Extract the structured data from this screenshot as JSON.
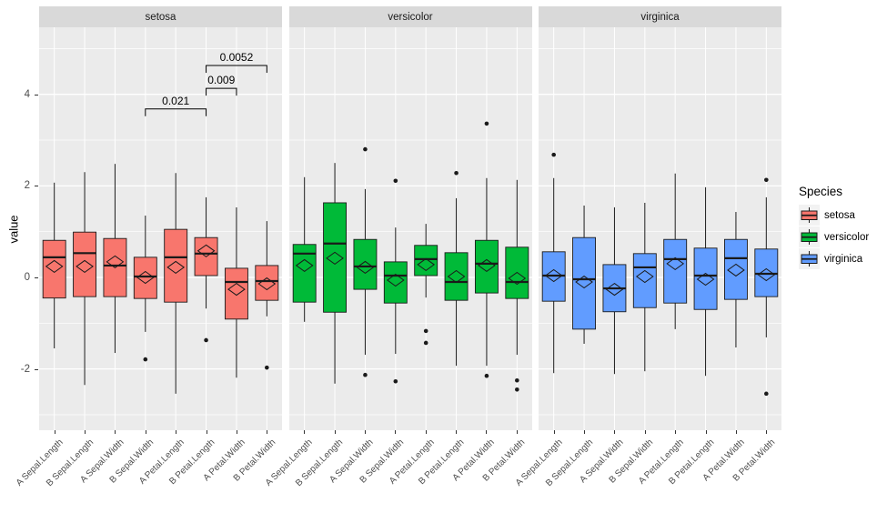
{
  "chart_data": {
    "type": "boxplot",
    "title": "",
    "ylabel": "value",
    "xlabel": "",
    "grid": true,
    "legend_position": "right",
    "y_ticks": [
      4,
      2,
      0,
      -2
    ],
    "y_tick_labels": [
      "4",
      "2",
      "0",
      "-2"
    ],
    "y_minor_gridlines": [
      5,
      3,
      1,
      -1,
      -3
    ],
    "ylim": [
      -3.35,
      5.45
    ],
    "categories": [
      "A Sepal.Length",
      "B Sepal.Length",
      "A Sepal.Width",
      "B Sepal.Width",
      "A Petal.Length",
      "B Petal.Length",
      "A Petal.Width",
      "B Petal.Width"
    ],
    "facets": [
      {
        "name": "setosa",
        "color": "#F8766D",
        "boxes": [
          {
            "whisker_low": -1.55,
            "q1": -0.45,
            "median": 0.44,
            "mean": 0.24,
            "q3": 0.81,
            "whisker_high": 2.07,
            "outliers": []
          },
          {
            "whisker_low": -2.35,
            "q1": -0.42,
            "median": 0.53,
            "mean": 0.24,
            "q3": 0.99,
            "whisker_high": 2.3,
            "outliers": []
          },
          {
            "whisker_low": -1.65,
            "q1": -0.42,
            "median": 0.26,
            "mean": 0.34,
            "q3": 0.85,
            "whisker_high": 2.48,
            "outliers": []
          },
          {
            "whisker_low": -1.19,
            "q1": -0.46,
            "median": 0.02,
            "mean": 0.0,
            "q3": 0.44,
            "whisker_high": 1.35,
            "outliers": [
              -1.79
            ]
          },
          {
            "whisker_low": -2.54,
            "q1": -0.54,
            "median": 0.44,
            "mean": 0.22,
            "q3": 1.05,
            "whisker_high": 2.28,
            "outliers": []
          },
          {
            "whisker_low": -0.68,
            "q1": 0.04,
            "median": 0.52,
            "mean": 0.58,
            "q3": 0.87,
            "whisker_high": 1.75,
            "outliers": [
              -1.37
            ]
          },
          {
            "whisker_low": -2.19,
            "q1": -0.91,
            "median": -0.1,
            "mean": -0.26,
            "q3": 0.2,
            "whisker_high": 1.53,
            "outliers": []
          },
          {
            "whisker_low": -0.85,
            "q1": -0.5,
            "median": -0.08,
            "mean": -0.14,
            "q3": 0.26,
            "whisker_high": 1.23,
            "outliers": [
              -1.97
            ]
          }
        ]
      },
      {
        "name": "versicolor",
        "color": "#00BA38",
        "boxes": [
          {
            "whisker_low": -0.97,
            "q1": -0.54,
            "median": 0.52,
            "mean": 0.26,
            "q3": 0.72,
            "whisker_high": 2.19,
            "outliers": []
          },
          {
            "whisker_low": -2.32,
            "q1": -0.76,
            "median": 0.74,
            "mean": 0.42,
            "q3": 1.63,
            "whisker_high": 2.5,
            "outliers": []
          },
          {
            "whisker_low": -1.69,
            "q1": -0.26,
            "median": 0.24,
            "mean": 0.22,
            "q3": 0.83,
            "whisker_high": 1.93,
            "outliers": [
              2.8,
              -2.13
            ]
          },
          {
            "whisker_low": -1.67,
            "q1": -0.56,
            "median": 0.04,
            "mean": -0.06,
            "q3": 0.34,
            "whisker_high": 1.09,
            "outliers": [
              2.11,
              -2.27
            ]
          },
          {
            "whisker_low": -0.44,
            "q1": 0.04,
            "median": 0.4,
            "mean": 0.28,
            "q3": 0.7,
            "whisker_high": 1.17,
            "outliers": [
              -1.17,
              -1.43
            ]
          },
          {
            "whisker_low": -1.93,
            "q1": -0.5,
            "median": -0.1,
            "mean": 0.02,
            "q3": 0.54,
            "whisker_high": 1.73,
            "outliers": [
              2.28
            ]
          },
          {
            "whisker_low": -1.93,
            "q1": -0.34,
            "median": 0.3,
            "mean": 0.26,
            "q3": 0.81,
            "whisker_high": 2.17,
            "outliers": [
              3.36,
              -2.15
            ]
          },
          {
            "whisker_low": -1.69,
            "q1": -0.46,
            "median": -0.1,
            "mean": -0.02,
            "q3": 0.66,
            "whisker_high": 2.13,
            "outliers": [
              -2.25,
              -2.45
            ]
          }
        ]
      },
      {
        "name": "virginica",
        "color": "#619CFF",
        "boxes": [
          {
            "whisker_low": -2.09,
            "q1": -0.52,
            "median": 0.04,
            "mean": 0.04,
            "q3": 0.56,
            "whisker_high": 2.17,
            "outliers": [
              2.68
            ]
          },
          {
            "whisker_low": -1.45,
            "q1": -1.13,
            "median": -0.04,
            "mean": -0.1,
            "q3": 0.87,
            "whisker_high": 1.57,
            "outliers": []
          },
          {
            "whisker_low": -2.11,
            "q1": -0.75,
            "median": -0.24,
            "mean": -0.26,
            "q3": 0.28,
            "whisker_high": 1.53,
            "outliers": []
          },
          {
            "whisker_low": -2.05,
            "q1": -0.66,
            "median": 0.22,
            "mean": 0.02,
            "q3": 0.52,
            "whisker_high": 1.63,
            "outliers": []
          },
          {
            "whisker_low": -1.13,
            "q1": -0.56,
            "median": 0.4,
            "mean": 0.3,
            "q3": 0.83,
            "whisker_high": 2.27,
            "outliers": []
          },
          {
            "whisker_low": -2.15,
            "q1": -0.7,
            "median": 0.04,
            "mean": -0.04,
            "q3": 0.64,
            "whisker_high": 1.97,
            "outliers": []
          },
          {
            "whisker_low": -1.53,
            "q1": -0.48,
            "median": 0.42,
            "mean": 0.16,
            "q3": 0.83,
            "whisker_high": 1.43,
            "outliers": []
          },
          {
            "whisker_low": -1.31,
            "q1": -0.42,
            "median": 0.08,
            "mean": 0.06,
            "q3": 0.62,
            "whisker_high": 1.75,
            "outliers": [
              2.13,
              -2.54
            ]
          }
        ]
      }
    ],
    "annotations": [
      {
        "facet": "setosa",
        "from_category_index": 3,
        "to_category_index": 5,
        "label": "0.021",
        "y": 3.68
      },
      {
        "facet": "setosa",
        "from_category_index": 5,
        "to_category_index": 6,
        "label": "0.009",
        "y": 4.13
      },
      {
        "facet": "setosa",
        "from_category_index": 5,
        "to_category_index": 7,
        "label": "0.0052",
        "y": 4.63
      }
    ],
    "legend": {
      "title": "Species",
      "entries": [
        {
          "label": "setosa",
          "color": "#F8766D"
        },
        {
          "label": "versicolor",
          "color": "#00BA38"
        },
        {
          "label": "virginica",
          "color": "#619CFF"
        }
      ]
    },
    "colors": {
      "panel_background": "#EBEBEB",
      "strip_background": "#D9D9D9",
      "gridline": "#FFFFFF",
      "box_outline": "#1A1A1A",
      "outlier_point": "#1A1A1A",
      "annotation_text": "#000000",
      "tick_label": "#4D4D4D"
    }
  }
}
